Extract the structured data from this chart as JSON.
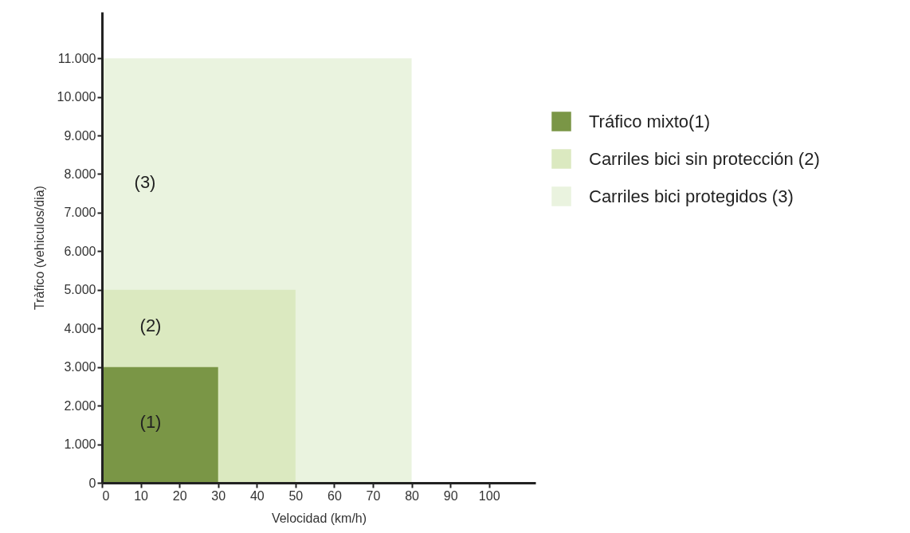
{
  "chart_data": {
    "type": "area",
    "xlabel": "Velocidad (km/h)",
    "ylabel": "Tràfico (vehiculos/dia)",
    "series": [
      {
        "name": "Tráfico mixto(1)",
        "color": "#7a9646",
        "x": [
          0,
          30
        ],
        "values": [
          3000,
          3000
        ]
      },
      {
        "name": "Carriles bici sin protección (2)",
        "color": "#dbe9c0",
        "x": [
          0,
          50
        ],
        "values": [
          5000,
          5000
        ]
      },
      {
        "name": "Carriles bici protegidos (3)",
        "color": "#eaf3df",
        "x": [
          0,
          80
        ],
        "values": [
          11000,
          11000
        ]
      }
    ],
    "annotations": [
      "(1)",
      "(2)",
      "(3)"
    ],
    "xlim": [
      0,
      112
    ],
    "xticks": [
      0,
      10,
      20,
      30,
      40,
      50,
      60,
      70,
      80,
      90,
      100
    ],
    "ylim": [
      0,
      12200
    ],
    "yticks": [
      0,
      {
        "value": 1000,
        "label": "1.000"
      },
      {
        "value": 2000,
        "label": "2.000"
      },
      {
        "value": 3000,
        "label": "3.000"
      },
      {
        "value": 4000,
        "label": "4.000"
      },
      {
        "value": 5000,
        "label": "5.000"
      },
      {
        "value": 6000,
        "label": "6.000"
      },
      {
        "value": 7000,
        "label": "7.000"
      },
      {
        "value": 8000,
        "label": "8.000"
      },
      {
        "value": 9000,
        "label": "9.000"
      },
      {
        "value": 10000,
        "label": "10.000"
      },
      {
        "value": 11000,
        "label": "11.000"
      }
    ],
    "grid": false,
    "legend": "right"
  }
}
